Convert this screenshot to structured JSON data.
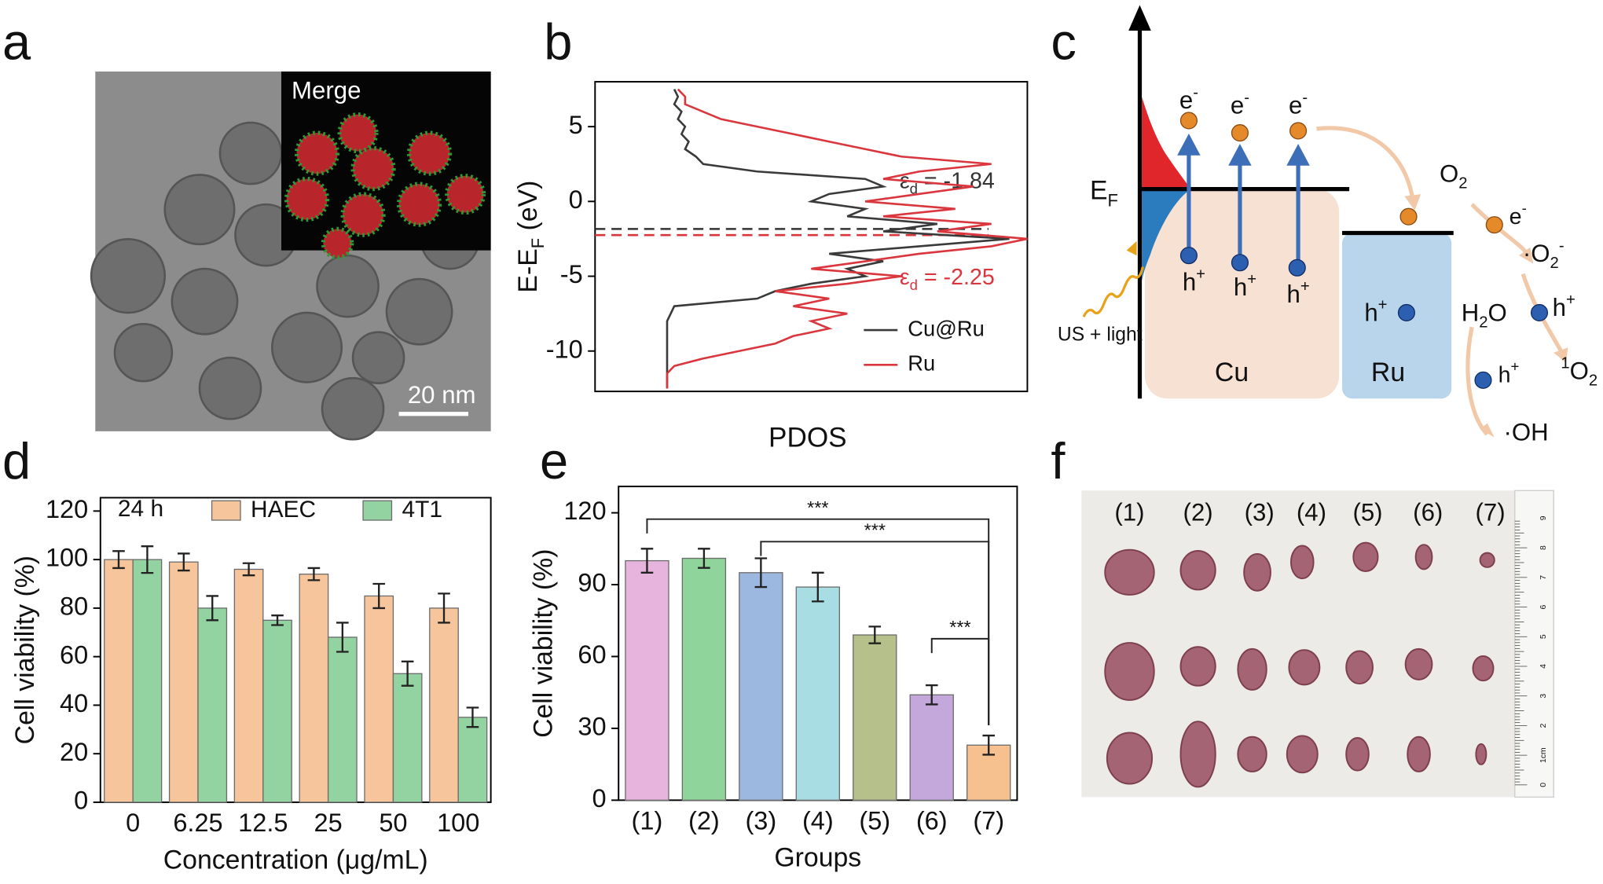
{
  "panel_labels": [
    "a",
    "b",
    "c",
    "d",
    "e",
    "f"
  ],
  "panel_a": {
    "inset_label": "Merge",
    "scale_bar": "20 nm"
  },
  "chart_data": [
    {
      "type": "line",
      "ylabel": [
        {
          "t": "E-E"
        },
        {
          "sub": "F"
        },
        {
          "t": " (eV)"
        }
      ],
      "xlabel": "PDOS",
      "y": [
        -12.5,
        -12,
        -11.5,
        -11,
        -10.5,
        -10,
        -9.5,
        -9,
        -8.5,
        -8,
        -7.5,
        -7,
        -6.5,
        -6,
        -5.5,
        -5,
        -4.5,
        -4,
        -3.5,
        -3,
        -2.5,
        -2,
        -1.5,
        -1,
        -0.5,
        0,
        0.5,
        1,
        1.5,
        2,
        2.5,
        3,
        3.5,
        4,
        4.5,
        5,
        5.5,
        6,
        6.5,
        7,
        7.5
      ],
      "series": [
        {
          "name": "Cu@Ru",
          "color": "#3a3a3a",
          "values": [
            0,
            0,
            0,
            0,
            0,
            0,
            0,
            0,
            0,
            0,
            0.01,
            0.02,
            0.25,
            0.3,
            0.4,
            0.55,
            0.5,
            0.6,
            0.45,
            0.7,
            0.95,
            0.6,
            0.75,
            0.5,
            0.55,
            0.4,
            0.45,
            0.6,
            0.55,
            0.25,
            0.1,
            0.08,
            0.05,
            0.06,
            0.04,
            0.05,
            0.03,
            0.04,
            0.02,
            0.03,
            0.02
          ]
        },
        {
          "name": "Ru",
          "color": "#d9363e",
          "values": [
            0,
            0,
            0,
            0.02,
            0.1,
            0.2,
            0.3,
            0.35,
            0.45,
            0.4,
            0.5,
            0.35,
            0.45,
            0.3,
            0.5,
            0.65,
            0.4,
            0.55,
            0.7,
            0.9,
            1.0,
            0.75,
            0.9,
            0.6,
            0.8,
            0.55,
            0.7,
            0.85,
            0.6,
            0.7,
            0.9,
            0.65,
            0.55,
            0.45,
            0.35,
            0.25,
            0.15,
            0.1,
            0.05,
            0.05,
            0.03
          ]
        }
      ],
      "xlim": [
        -0.2,
        1.0
      ],
      "ylim": [
        -12.7,
        8
      ],
      "yticks": [
        -10,
        -5,
        0,
        5
      ],
      "annotations": [
        {
          "text": [
            {
              "t": "ε"
            },
            {
              "sub": "d"
            },
            {
              "t": " = -1.84"
            }
          ],
          "value": -1.84,
          "color": "#333333"
        },
        {
          "text": [
            {
              "t": "ε"
            },
            {
              "sub": "d"
            },
            {
              "t": " = -2.25"
            }
          ],
          "value": -2.25,
          "color": "#d9363e"
        }
      ]
    },
    {
      "type": "bar",
      "ylabel": "Cell viability (%)",
      "xlabel": "Concentration (μg/mL)",
      "annotation": "24 h",
      "categories": [
        "0",
        "6.25",
        "12.5",
        "25",
        "50",
        "100"
      ],
      "series": [
        {
          "name": "HAEC",
          "color": "#f7c59b",
          "values": [
            100,
            99,
            96,
            94,
            85,
            80
          ],
          "errors": [
            3.5,
            3.5,
            2.5,
            2.5,
            5,
            6
          ]
        },
        {
          "name": "4T1",
          "color": "#93d3a2",
          "values": [
            100,
            80,
            75,
            68,
            53,
            35
          ],
          "errors": [
            5.5,
            5,
            2,
            6,
            5,
            4
          ]
        }
      ],
      "ylim": [
        0,
        125.5
      ],
      "yticks": [
        0,
        20,
        40,
        60,
        80,
        100,
        120
      ]
    },
    {
      "type": "bar",
      "ylabel": "Cell viability (%)",
      "xlabel": "Groups",
      "categories": [
        "(1)",
        "(2)",
        "(3)",
        "(4)",
        "(5)",
        "(6)",
        "(7)"
      ],
      "values": [
        100,
        101,
        95,
        89,
        69,
        44,
        23
      ],
      "errors": [
        5,
        4,
        6,
        6,
        3.5,
        4,
        4
      ],
      "colors": [
        "#e7b4dd",
        "#8fd49a",
        "#9db8e0",
        "#a8dde3",
        "#b6c08a",
        "#c4a8dc",
        "#f7c08f"
      ],
      "ylim": [
        0,
        131
      ],
      "yticks": [
        0,
        30,
        60,
        90,
        120
      ],
      "significance": [
        {
          "from": 0,
          "to": 6,
          "label": "***"
        },
        {
          "from": 2,
          "to": 6,
          "label": "***"
        },
        {
          "from": 5,
          "to": 6,
          "label": "***"
        }
      ]
    }
  ],
  "diagram_c": {
    "labels": [
      [
        {
          "t": "E"
        },
        {
          "sub": "F"
        }
      ],
      [
        {
          "t": "e"
        },
        {
          "sup": "-"
        }
      ],
      [
        {
          "t": "e"
        },
        {
          "sup": "-"
        }
      ],
      [
        {
          "t": "e"
        },
        {
          "sup": "-"
        }
      ],
      [
        {
          "t": "h"
        },
        {
          "sup": "+"
        }
      ],
      [
        {
          "t": "h"
        },
        {
          "sup": "+"
        }
      ],
      [
        {
          "t": "h"
        },
        {
          "sup": "+"
        }
      ],
      [
        {
          "t": "US + light"
        }
      ],
      [
        {
          "t": "Cu"
        }
      ],
      [
        {
          "t": "Ru"
        }
      ],
      [
        {
          "t": "h"
        },
        {
          "sup": "+"
        }
      ],
      [
        {
          "t": "O"
        },
        {
          "sub": "2"
        }
      ],
      [
        {
          "t": "e"
        },
        {
          "sup": "-"
        }
      ],
      [
        {
          "t": "·O"
        },
        {
          "sub": "2"
        },
        {
          "sup": "-"
        }
      ],
      [
        {
          "t": "H"
        },
        {
          "sub": "2"
        },
        {
          "t": "O"
        }
      ],
      [
        {
          "t": "h"
        },
        {
          "sup": "+"
        }
      ],
      [
        {
          "t": "h"
        },
        {
          "sup": "+"
        }
      ],
      [
        {
          "sup": "1"
        },
        {
          "t": "O"
        },
        {
          "sub": "2"
        }
      ],
      [
        {
          "t": "·OH"
        }
      ]
    ]
  },
  "panel_f": {
    "groups": [
      "(1)",
      "(2)",
      "(3)",
      "(4)",
      "(5)",
      "(6)",
      "(7)"
    ],
    "ruler_labels": [
      "0",
      "1cm",
      "2",
      "3",
      "4",
      "5",
      "6",
      "7",
      "8",
      "9"
    ]
  }
}
